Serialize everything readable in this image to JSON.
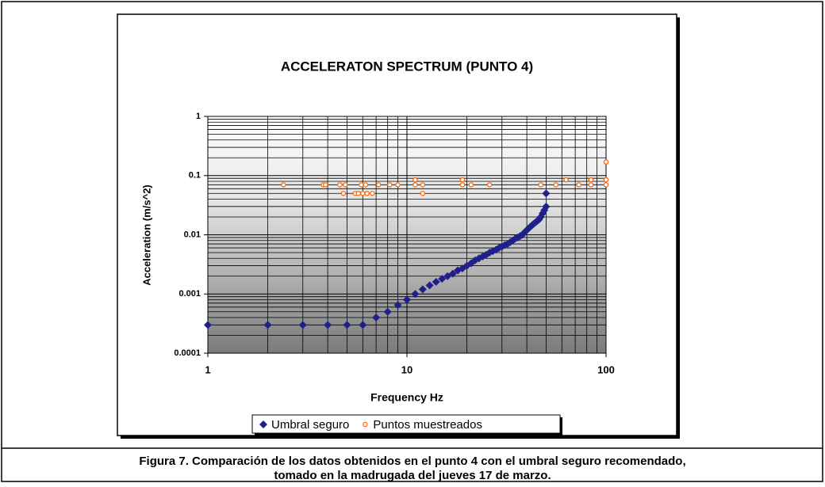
{
  "chart_data": {
    "type": "scatter",
    "title": "ACCELERATON SPECTRUM  (PUNTO 4)",
    "x_label": "Frequency Hz",
    "y_label": "Acceleration (m/s^2)",
    "xlog": true,
    "ylog": true,
    "grid": true,
    "legend": "bottom",
    "xlim": [
      1,
      100
    ],
    "ylim": [
      0.0001,
      1
    ],
    "xticks": [
      1,
      10,
      100
    ],
    "yticks": [
      0.0001,
      0.001,
      0.01,
      0.1,
      1
    ],
    "series": [
      {
        "name": "Umbral seguro",
        "color": "#20208a",
        "marker": "diamond",
        "x": [
          1,
          2,
          3,
          4,
          5,
          6,
          7,
          8,
          9,
          10,
          11,
          12,
          13,
          14,
          15,
          16,
          17,
          18,
          19,
          20,
          21,
          22,
          23,
          24,
          25,
          26,
          27,
          28,
          29,
          30,
          31,
          32,
          33,
          34,
          35,
          36,
          37,
          38,
          39,
          40,
          41,
          42,
          43,
          44,
          45,
          46,
          47,
          48,
          49,
          50,
          50
        ],
        "values": [
          0.0003,
          0.0003,
          0.0003,
          0.0003,
          0.0003,
          0.0003,
          0.0004,
          0.0005,
          0.00065,
          0.0008,
          0.001,
          0.0012,
          0.0014,
          0.0016,
          0.0018,
          0.002,
          0.0022,
          0.0025,
          0.0027,
          0.003,
          0.0033,
          0.0037,
          0.004,
          0.0043,
          0.0046,
          0.005,
          0.0053,
          0.0056,
          0.006,
          0.0063,
          0.0067,
          0.007,
          0.0075,
          0.008,
          0.0086,
          0.009,
          0.0095,
          0.01,
          0.011,
          0.012,
          0.013,
          0.014,
          0.015,
          0.016,
          0.017,
          0.018,
          0.02,
          0.023,
          0.026,
          0.03,
          0.05
        ]
      },
      {
        "name": "Puntos muestreados",
        "color": "#ff6600",
        "marker": "circle",
        "x": [
          2.4,
          3.8,
          3.9,
          4.6,
          4.8,
          4.9,
          5.5,
          5.7,
          5.9,
          6.0,
          6.2,
          6.3,
          6.7,
          7.2,
          8.2,
          9.0,
          11,
          11,
          12,
          12,
          19,
          19,
          21,
          26,
          47,
          56,
          63,
          73,
          84,
          84,
          100,
          100,
          100
        ],
        "values": [
          0.07,
          0.07,
          0.07,
          0.07,
          0.05,
          0.07,
          0.05,
          0.05,
          0.07,
          0.05,
          0.07,
          0.05,
          0.05,
          0.07,
          0.07,
          0.07,
          0.085,
          0.07,
          0.05,
          0.07,
          0.085,
          0.07,
          0.07,
          0.07,
          0.07,
          0.07,
          0.085,
          0.07,
          0.085,
          0.07,
          0.17,
          0.085,
          0.07
        ]
      }
    ]
  },
  "caption": [
    "Figura 7. Comparación de los datos obtenidos en el punto 4 con el umbral seguro recomendado,",
    "tomado en la madrugada del jueves 17 de marzo."
  ]
}
